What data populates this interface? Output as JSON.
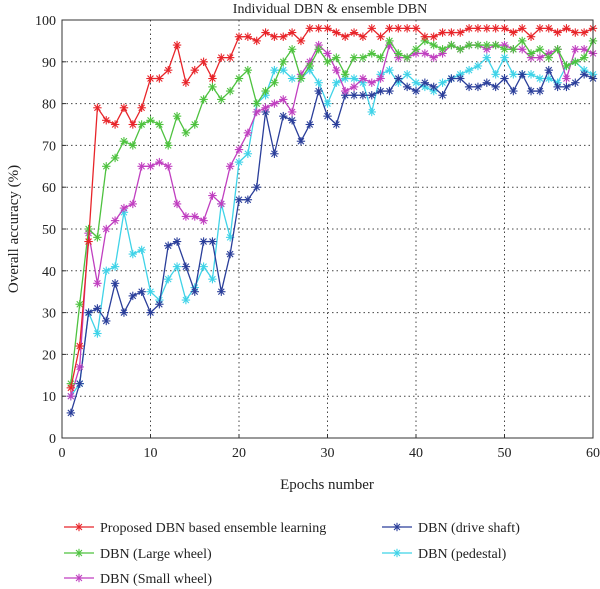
{
  "chart_data": {
    "type": "line",
    "title": "Individual DBN & ensemble DBN",
    "xlabel": "Epochs number",
    "ylabel": "Overall accuracy (%)",
    "xlim": [
      0,
      60
    ],
    "ylim": [
      0,
      100
    ],
    "xticks": [
      0,
      10,
      20,
      30,
      40,
      50,
      60
    ],
    "yticks": [
      0,
      10,
      20,
      30,
      40,
      50,
      60,
      70,
      80,
      90,
      100
    ],
    "grid": "dotted",
    "legend_position": "below-plot",
    "x": [
      1,
      2,
      3,
      4,
      5,
      6,
      7,
      8,
      9,
      10,
      11,
      12,
      13,
      14,
      15,
      16,
      17,
      18,
      19,
      20,
      21,
      22,
      23,
      24,
      25,
      26,
      27,
      28,
      29,
      30,
      31,
      32,
      33,
      34,
      35,
      36,
      37,
      38,
      39,
      40,
      41,
      42,
      43,
      44,
      45,
      46,
      47,
      48,
      49,
      50,
      51,
      52,
      53,
      54,
      55,
      56,
      57,
      58,
      59,
      60
    ],
    "series": [
      {
        "name": "Proposed DBN based ensemble learning",
        "color": "#e8252a",
        "values": [
          12,
          22,
          47,
          79,
          76,
          75,
          79,
          75,
          79,
          86,
          86,
          88,
          94,
          85,
          88,
          90,
          86,
          91,
          91,
          96,
          96,
          95,
          97,
          96,
          96,
          97,
          95,
          98,
          98,
          98,
          97,
          96,
          97,
          96,
          98,
          96,
          98,
          98,
          98,
          98,
          96,
          96,
          97,
          97,
          97,
          98,
          98,
          98,
          98,
          98,
          97,
          98,
          96,
          98,
          98,
          97,
          98,
          97,
          97,
          98
        ]
      },
      {
        "name": "DBN (Large wheel)",
        "color": "#4ec23f",
        "values": [
          13,
          32,
          50,
          48,
          65,
          67,
          71,
          70,
          75,
          76,
          75,
          70,
          77,
          73,
          75,
          81,
          84,
          81,
          83,
          86,
          88,
          80,
          83,
          85,
          90,
          93,
          86,
          89,
          93,
          90,
          91,
          87,
          91,
          91,
          92,
          91,
          95,
          92,
          91,
          93,
          95,
          94,
          93,
          94,
          93,
          94,
          94,
          94,
          94,
          93,
          93,
          95,
          92,
          93,
          91,
          93,
          89,
          90,
          91,
          95
        ]
      },
      {
        "name": "DBN (Small wheel)",
        "color": "#c03fc0",
        "values": [
          10,
          17,
          49,
          37,
          50,
          52,
          55,
          56,
          65,
          65,
          66,
          65,
          56,
          53,
          53,
          52,
          58,
          56,
          65,
          69,
          73,
          78,
          79,
          80,
          81,
          78,
          87,
          90,
          94,
          92,
          88,
          83,
          84,
          86,
          85,
          86,
          94,
          91,
          91,
          92,
          92,
          91,
          92,
          94,
          93,
          94,
          94,
          93,
          94,
          94,
          93,
          93,
          91,
          91,
          92,
          93,
          86,
          93,
          93,
          92
        ]
      },
      {
        "name": "DBN (drive shaft)",
        "color": "#2a3e9a",
        "values": [
          6,
          13,
          30,
          31,
          28,
          37,
          30,
          34,
          35,
          30,
          32,
          46,
          47,
          41,
          35,
          47,
          47,
          35,
          44,
          57,
          57,
          60,
          78,
          68,
          77,
          76,
          71,
          75,
          83,
          77,
          75,
          82,
          82,
          82,
          82,
          83,
          83,
          86,
          84,
          83,
          85,
          84,
          82,
          86,
          86,
          84,
          84,
          85,
          84,
          86,
          83,
          87,
          83,
          83,
          88,
          84,
          84,
          85,
          87,
          86
        ]
      },
      {
        "name": "DBN (pedestal)",
        "color": "#3fd3e8",
        "values": [
          10,
          13,
          30,
          25,
          40,
          41,
          54,
          44,
          45,
          35,
          33,
          38,
          41,
          33,
          36,
          41,
          38,
          56,
          48,
          66,
          68,
          80,
          82,
          88,
          88,
          86,
          86,
          88,
          85,
          80,
          85,
          86,
          86,
          85,
          78,
          87,
          88,
          85,
          87,
          85,
          84,
          83,
          85,
          86,
          87,
          88,
          89,
          91,
          87,
          91,
          87,
          87,
          87,
          86,
          86,
          85,
          89,
          90,
          88,
          87
        ]
      }
    ]
  }
}
